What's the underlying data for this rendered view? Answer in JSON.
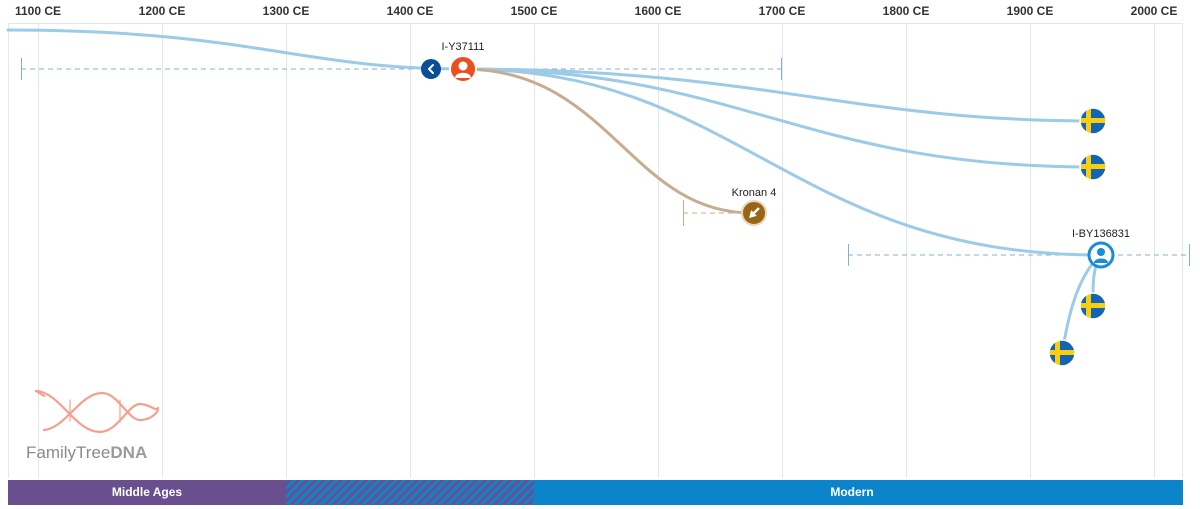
{
  "axis": {
    "ticks": [
      "1100 CE",
      "1200 CE",
      "1300 CE",
      "1400 CE",
      "1500 CE",
      "1600 CE",
      "1700 CE",
      "1800 CE",
      "1900 CE",
      "2000 CE"
    ]
  },
  "nodes": {
    "root": {
      "label": "I-Y37111",
      "icon": "person-icon"
    },
    "kronan": {
      "label": "Kronan 4",
      "icon": "shovel-icon"
    },
    "branch": {
      "label": "I-BY136831",
      "icon": "person-icon"
    },
    "flag_icon": "sweden-flag-icon",
    "back_icon": "chevron-left-icon"
  },
  "eras": [
    {
      "label": "Middle Ages"
    },
    {
      "label": ""
    },
    {
      "label": "Modern"
    }
  ],
  "logo": {
    "text_main": "FamilyTree",
    "text_bold": "DNA"
  },
  "colors": {
    "root_node": "#e8501e",
    "branch_line": "#9ccbe8",
    "ancient_line": "#c7ad8f",
    "ancient_node": "#9a6417",
    "branch_node": "#1a8cd8",
    "middle_ages": "#6a4f8f",
    "modern": "#0b84cc",
    "logo_helix": "#f5a08c"
  }
}
